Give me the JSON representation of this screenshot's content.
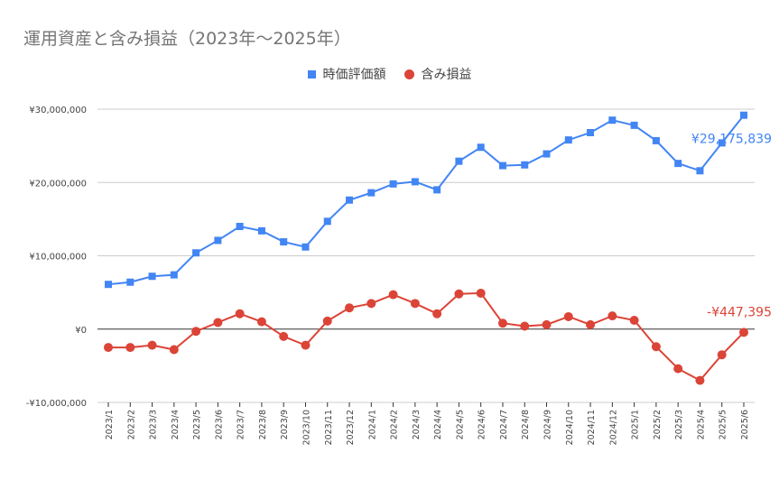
{
  "title": "運用資産と含み損益（2023年～2025年）",
  "legend": {
    "series1": "時価評価額",
    "series2": "含み損益"
  },
  "colors": {
    "series1": "#4285f4",
    "series2": "#db4437",
    "grid": "#cccccc",
    "zero_line": "#333333"
  },
  "chart_data": {
    "type": "line",
    "title": "運用資産と含み損益（2023年～2025年）",
    "xlabel": "",
    "ylabel": "",
    "ylim": [
      -10000000,
      30000000
    ],
    "yticks": [
      -10000000,
      0,
      10000000,
      20000000,
      30000000
    ],
    "ytick_labels": [
      "-¥10,000,000",
      "¥0",
      "¥10,000,000",
      "¥20,000,000",
      "¥30,000,000"
    ],
    "grid": true,
    "legend_position": "top",
    "categories": [
      "2023/1",
      "2023/2",
      "2023/3",
      "2023/4",
      "2023/5",
      "2023/6",
      "2023/7",
      "2023/8",
      "2023/9",
      "2023/10",
      "2023/11",
      "2023/12",
      "2024/1",
      "2024/2",
      "2024/3",
      "2024/4",
      "2024/5",
      "2024/6",
      "2024/7",
      "2024/8",
      "2024/9",
      "2024/10",
      "2024/11",
      "2024/12",
      "2025/1",
      "2025/2",
      "2025/3",
      "2025/4",
      "2025/5",
      "2025/6"
    ],
    "series": [
      {
        "name": "時価評価額",
        "marker": "square",
        "values": [
          6100000,
          6400000,
          7200000,
          7400000,
          10400000,
          12100000,
          14000000,
          13400000,
          11900000,
          11200000,
          14700000,
          17600000,
          18600000,
          19800000,
          20100000,
          19000000,
          22900000,
          24800000,
          22300000,
          22400000,
          23900000,
          25800000,
          26800000,
          28500000,
          27800000,
          25700000,
          22600000,
          21600000,
          25400000,
          29175839
        ],
        "end_label": "¥29,175,839"
      },
      {
        "name": "含み損益",
        "marker": "circle",
        "values": [
          -2500000,
          -2500000,
          -2200000,
          -2800000,
          -300000,
          900000,
          2100000,
          1000000,
          -1000000,
          -2200000,
          1100000,
          2900000,
          3500000,
          4700000,
          3500000,
          2100000,
          4800000,
          4900000,
          800000,
          400000,
          600000,
          1700000,
          600000,
          1800000,
          1200000,
          -2400000,
          -5400000,
          -7000000,
          -3500000,
          -447395
        ],
        "end_label": "-¥447,395"
      }
    ]
  }
}
